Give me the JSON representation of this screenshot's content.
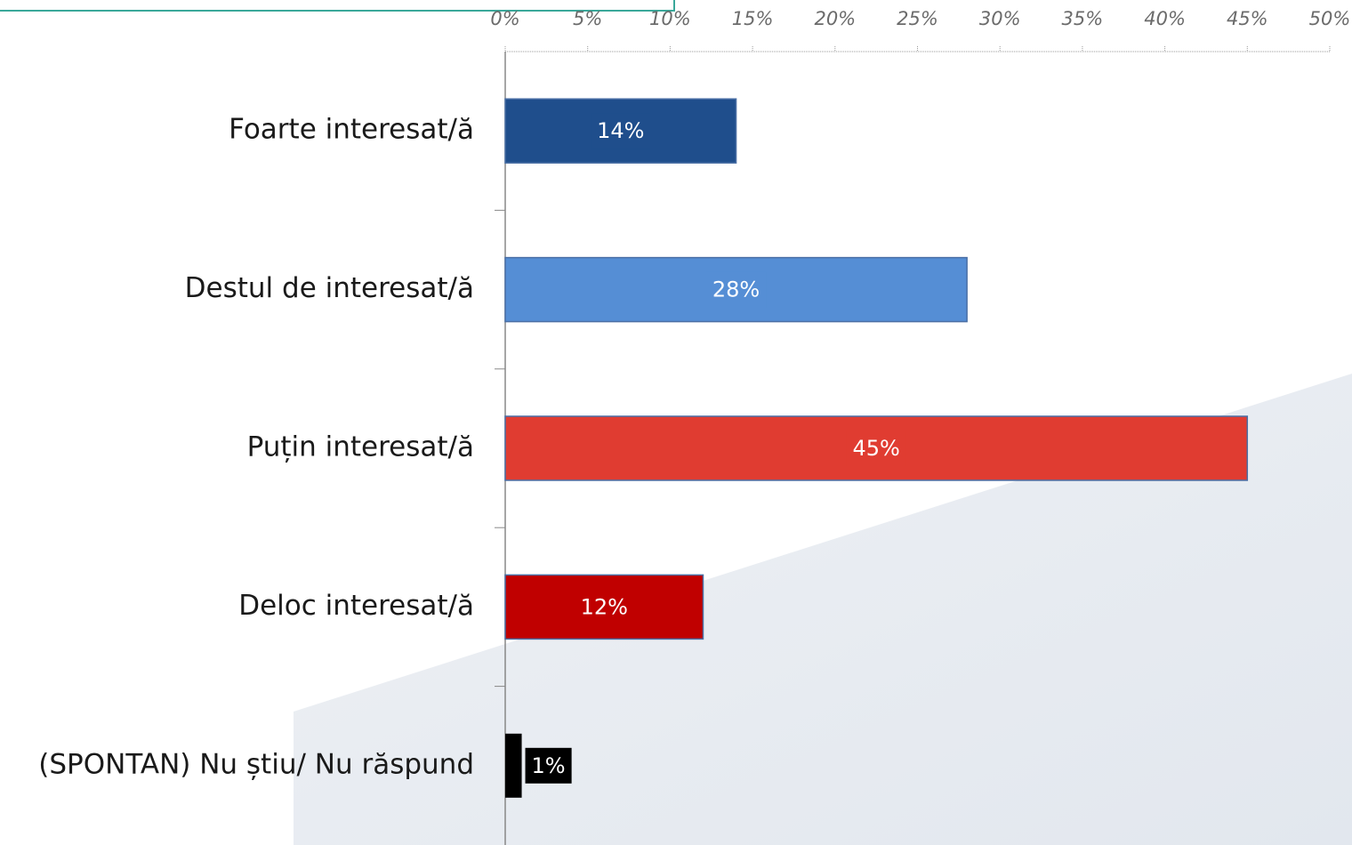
{
  "chart_data": {
    "type": "barh",
    "categories": [
      "Foarte interesat/ă",
      "Destul de interesat/ă",
      "Puțin interesat/ă",
      "Deloc interesat/ă",
      "(SPONTAN) Nu știu/ Nu răspund"
    ],
    "values": [
      14,
      28,
      45,
      12,
      1
    ],
    "value_labels": [
      "14%",
      "28%",
      "45%",
      "12%",
      "1%"
    ],
    "colors": [
      "#1f4e8c",
      "#558ed5",
      "#e03c31",
      "#c00000",
      "#000000"
    ],
    "xlim": [
      0,
      50
    ],
    "xticks": [
      {
        "value": 0,
        "label": "0%"
      },
      {
        "value": 5,
        "label": "5%"
      },
      {
        "value": 10,
        "label": "10%"
      },
      {
        "value": 15,
        "label": "15%"
      },
      {
        "value": 20,
        "label": "20%"
      },
      {
        "value": 25,
        "label": "25%"
      },
      {
        "value": 30,
        "label": "30%"
      },
      {
        "value": 35,
        "label": "35%"
      },
      {
        "value": 40,
        "label": "40%"
      },
      {
        "value": 45,
        "label": "45%"
      },
      {
        "value": 50,
        "label": "50%"
      }
    ],
    "xaxis_position": "top"
  }
}
